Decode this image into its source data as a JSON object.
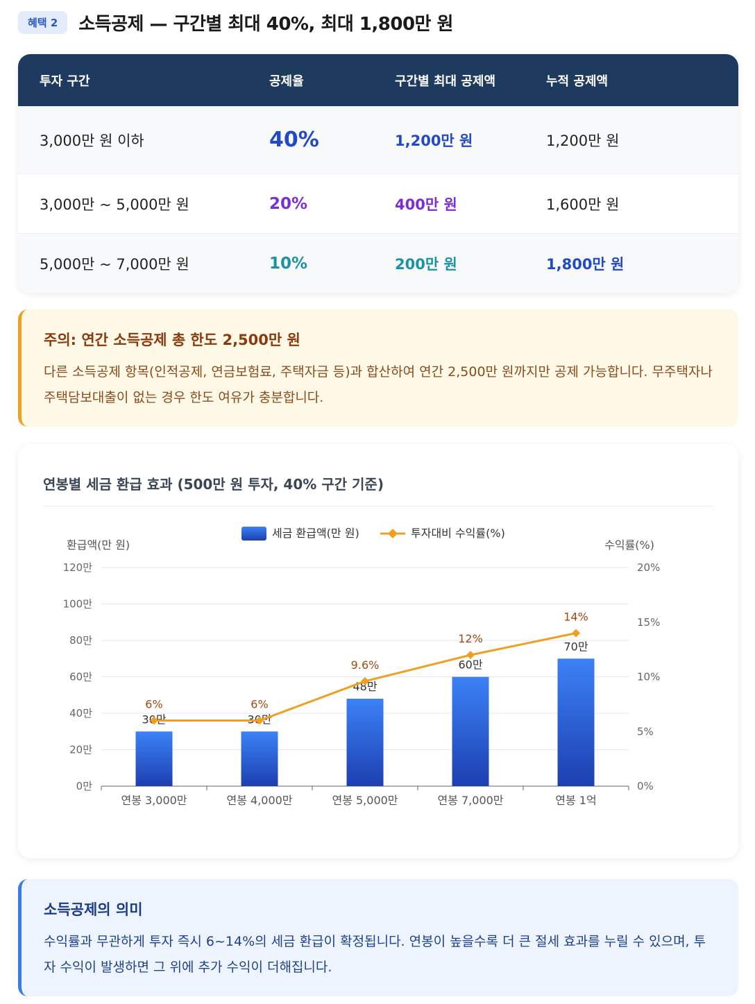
{
  "header": {
    "badge": "혜택 2",
    "title": "소득공제 — 구간별 최대 40%, 최대 1,800만 원"
  },
  "table": {
    "headers": [
      "투자 구간",
      "공제율",
      "구간별 최대 공제액",
      "누적 공제액"
    ],
    "rows": [
      {
        "range": "3,000만 원 이하",
        "rate": "40%",
        "max": "1,200만 원",
        "cumulative": "1,200만 원"
      },
      {
        "range": "3,000만 ~ 5,000만 원",
        "rate": "20%",
        "max": "400만 원",
        "cumulative": "1,600만 원"
      },
      {
        "range": "5,000만 ~ 7,000만 원",
        "rate": "10%",
        "max": "200만 원",
        "cumulative": "1,800만 원"
      }
    ]
  },
  "warning": {
    "title": "주의: 연간 소득공제 총 한도 2,500만 원",
    "text": "다른 소득공제 항목(인적공제, 연금보험료, 주택자금 등)과 합산하여 연간 2,500만 원까지만 공제 가능합니다. 무주택자나 주택담보대출이 없는 경우 한도 여유가 충분합니다."
  },
  "chart_data": {
    "type": "bar",
    "title": "연봉별 세금 환급 효과 (500만 원 투자, 40% 구간 기준)",
    "categories": [
      "연봉 3,000만",
      "연봉 4,000만",
      "연봉 5,000만",
      "연봉 7,000만",
      "연봉 1억"
    ],
    "series": [
      {
        "name": "세금 환급액(만 원)",
        "type": "bar",
        "axis": "left",
        "values": [
          30,
          30,
          48,
          60,
          70
        ],
        "labels": [
          "30만",
          "30만",
          "48만",
          "60만",
          "70만"
        ],
        "color_top": "#3b82f6",
        "color_bottom": "#1d3fb0"
      },
      {
        "name": "투자대비 수익률(%)",
        "type": "line",
        "axis": "right",
        "values": [
          6,
          6,
          9.6,
          12,
          14
        ],
        "labels": [
          "6%",
          "6%",
          "9.6%",
          "12%",
          "14%"
        ],
        "color": "#f0a020",
        "label_color": "#a04a10"
      }
    ],
    "ylabel": "환급액(만 원)",
    "ylabel_right": "수익률(%)",
    "ylim": [
      0,
      120
    ],
    "ylim_right": [
      0,
      20
    ],
    "yticks": [
      0,
      20,
      40,
      60,
      80,
      100,
      120
    ],
    "yticklabels": [
      "0만",
      "20만",
      "40만",
      "60만",
      "80만",
      "100만",
      "120만"
    ],
    "yticks_right": [
      0,
      5,
      10,
      15,
      20
    ],
    "yticklabels_right": [
      "0%",
      "5%",
      "10%",
      "15%",
      "20%"
    ],
    "grid": true,
    "legend": "top"
  },
  "info": {
    "title": "소득공제의 의미",
    "text": "수익률과 무관하게 투자 즉시 6~14%의 세금 환급이 확정됩니다. 연봉이 높을수록 더 큰 절세 효과를 누릴 수 있으며, 투자 수익이 발생하면 그 위에 추가 수익이 더해집니다."
  }
}
